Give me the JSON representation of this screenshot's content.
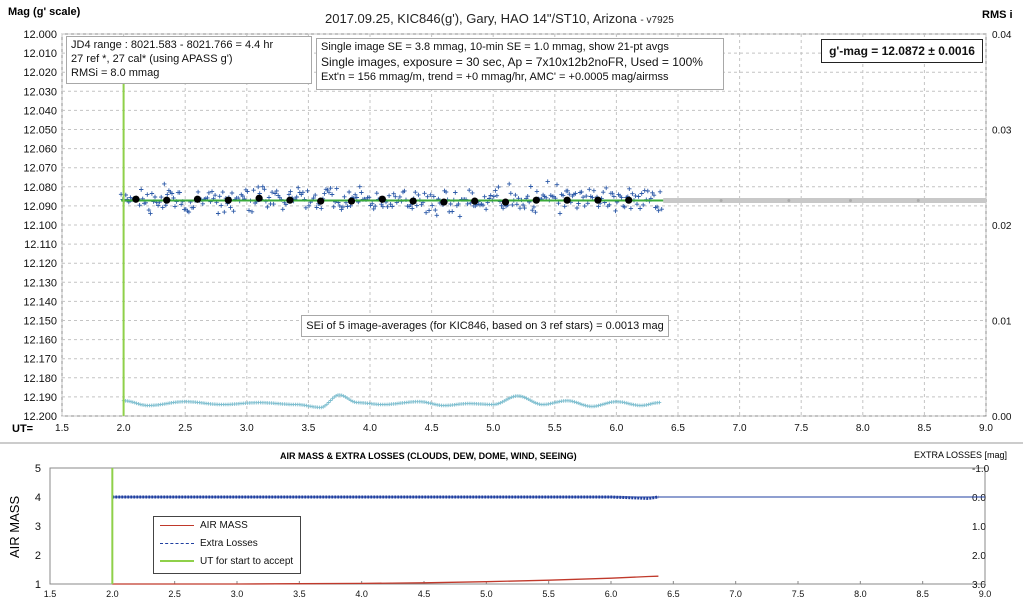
{
  "top_chart": {
    "title": "2017.09.25,  KIC846(g'),  Gary, HAO 14\"/ST10, Arizona",
    "version": "- v7925",
    "y_label": "Mag (g' scale)",
    "y2_label": "RMS i",
    "x_label": "UT=",
    "info_box_1": [
      "JD4 range : 8021.583 - 8021.766 =  4.4  hr",
      "27 ref *, 27 cal* (using APASS g')",
      "RMSi = 8.0 mmag"
    ],
    "info_box_2": [
      "Single image SE = 3.8 mmag, 10-min SE = 1.0 mmag, show 21-pt avgs",
      "Single images, exposure = 30 sec, Ap = 7x10x12b2noFR, Used = 100%",
      "Ext'n = 156 mmag/m, trend =  +0 mmag/hr, AMC' = +0.0005 mag/airmss"
    ],
    "result_box": "g'-mag = 12.0872 ± 0.0016",
    "sei_box": "SEi of 5 image-averages (for KIC846, based on 3 ref stars) = 0.0013 mag"
  },
  "bottom_chart": {
    "title": "AIR MASS & EXTRA LOSSES (CLOUDS, DEW, DOME, WIND, SEEING)",
    "y_label": "AIR MASS",
    "y2_label": "EXTRA LOSSES [mag]",
    "legend": [
      "AIR MASS",
      "Extra Losses",
      "UT for start to accept"
    ]
  },
  "chart_data": [
    {
      "type": "scatter",
      "title": "2017.09.25,  KIC846(g'),  Gary, HAO 14\"/ST10, Arizona",
      "xlabel": "UT=",
      "ylabel": "Mag (g' scale)",
      "y2label": "RMS i",
      "xlim": [
        1.5,
        9.0
      ],
      "ylim": [
        12.2,
        12.0
      ],
      "y_inverted": true,
      "y2lim": [
        0.0,
        0.04
      ],
      "x_ticks": [
        "1.5",
        "2.0",
        "2.5",
        "3.0",
        "3.5",
        "4.0",
        "4.5",
        "5.0",
        "5.5",
        "6.0",
        "6.5",
        "7.0",
        "7.5",
        "8.0",
        "8.5",
        "9.0"
      ],
      "y_ticks": [
        "12.000",
        "12.010",
        "12.020",
        "12.030",
        "12.040",
        "12.050",
        "12.060",
        "12.070",
        "12.080",
        "12.090",
        "12.100",
        "12.110",
        "12.120",
        "12.130",
        "12.140",
        "12.150",
        "12.160",
        "12.170",
        "12.180",
        "12.190",
        "12.200"
      ],
      "y2_ticks": [
        "0.04",
        "0.03",
        "0.02",
        "0.01",
        "0.00"
      ],
      "grid": true,
      "colors": {
        "single": "#2d5aa8",
        "avg": "#000000",
        "fit": "#3aaa3a",
        "rms": "#7fbfd0",
        "extension": "#c8c8c8",
        "ut_start": "#8fd04a"
      },
      "series": [
        {
          "name": "21-pt avgs",
          "x": [
            2.1,
            2.35,
            2.6,
            2.85,
            3.1,
            3.35,
            3.6,
            3.85,
            4.1,
            4.35,
            4.6,
            4.85,
            5.1,
            5.35,
            5.6,
            5.85,
            6.1
          ],
          "y": [
            12.0865,
            12.087,
            12.0865,
            12.087,
            12.086,
            12.087,
            12.0875,
            12.0875,
            12.0865,
            12.0875,
            12.088,
            12.0875,
            12.088,
            12.087,
            12.087,
            12.087,
            12.087
          ]
        },
        {
          "x_range": [
            1.98,
            6.38
          ],
          "y": 12.0872
        },
        {
          "x_range": [
            6.38,
            9.0
          ],
          "y": 12.0872
        },
        {
          "x": [
            2.0,
            2.2,
            2.5,
            2.8,
            3.1,
            3.4,
            3.6,
            3.75,
            3.9,
            4.1,
            4.4,
            4.6,
            4.8,
            5.0,
            5.2,
            5.4,
            5.6,
            5.8,
            6.0,
            6.2,
            6.35
          ],
          "y": [
            0.0016,
            0.0011,
            0.0015,
            0.0012,
            0.0014,
            0.0012,
            0.0009,
            0.0022,
            0.0014,
            0.0012,
            0.0015,
            0.0011,
            0.0013,
            0.0012,
            0.0021,
            0.0012,
            0.0016,
            0.001,
            0.0015,
            0.0011,
            0.0014
          ]
        },
        {
          "x": 2.0
        }
      ]
    },
    {
      "type": "line",
      "title": "AIR MASS & EXTRA LOSSES (CLOUDS, DEW, DOME, WIND, SEEING)",
      "ylabel": "AIR MASS",
      "y2label": "EXTRA LOSSES [mag]",
      "xlim": [
        1.5,
        9.0
      ],
      "ylim": [
        1,
        5
      ],
      "y2lim": [
        3.0,
        -1.0
      ],
      "x_ticks": [
        "1.5",
        "2.0",
        "2.5",
        "3.0",
        "3.5",
        "4.0",
        "4.5",
        "5.0",
        "5.5",
        "6.0",
        "6.5",
        "7.0",
        "7.5",
        "8.0",
        "8.5",
        "9.0"
      ],
      "y_ticks": [
        "1",
        "2",
        "3",
        "4",
        "5"
      ],
      "y2_ticks": [
        "3.0",
        "2.0",
        "1.0",
        "0.0",
        "-1.0"
      ],
      "legend": "bottom-left",
      "colors": {
        "air_mass": "#c0392b",
        "extra_losses": "#1f3fa0",
        "ut_start": "#8fd04a"
      },
      "series": [
        {
          "name": "AIR MASS",
          "x": [
            2.0,
            2.5,
            3.0,
            3.5,
            4.0,
            4.5,
            5.0,
            5.5,
            6.0,
            6.3,
            6.38
          ],
          "y": [
            1.0,
            1.0,
            1.0,
            1.01,
            1.02,
            1.04,
            1.08,
            1.13,
            1.2,
            1.26,
            1.27
          ]
        },
        {
          "name": "Extra Losses",
          "x": [
            2.0,
            3.0,
            4.0,
            5.0,
            6.0,
            6.3,
            6.38
          ],
          "y": [
            0.0,
            0.0,
            0.0,
            0.0,
            0.0,
            0.05,
            0.0
          ]
        },
        {
          "name": "UT for start to accept",
          "x": 2.0
        }
      ]
    }
  ]
}
